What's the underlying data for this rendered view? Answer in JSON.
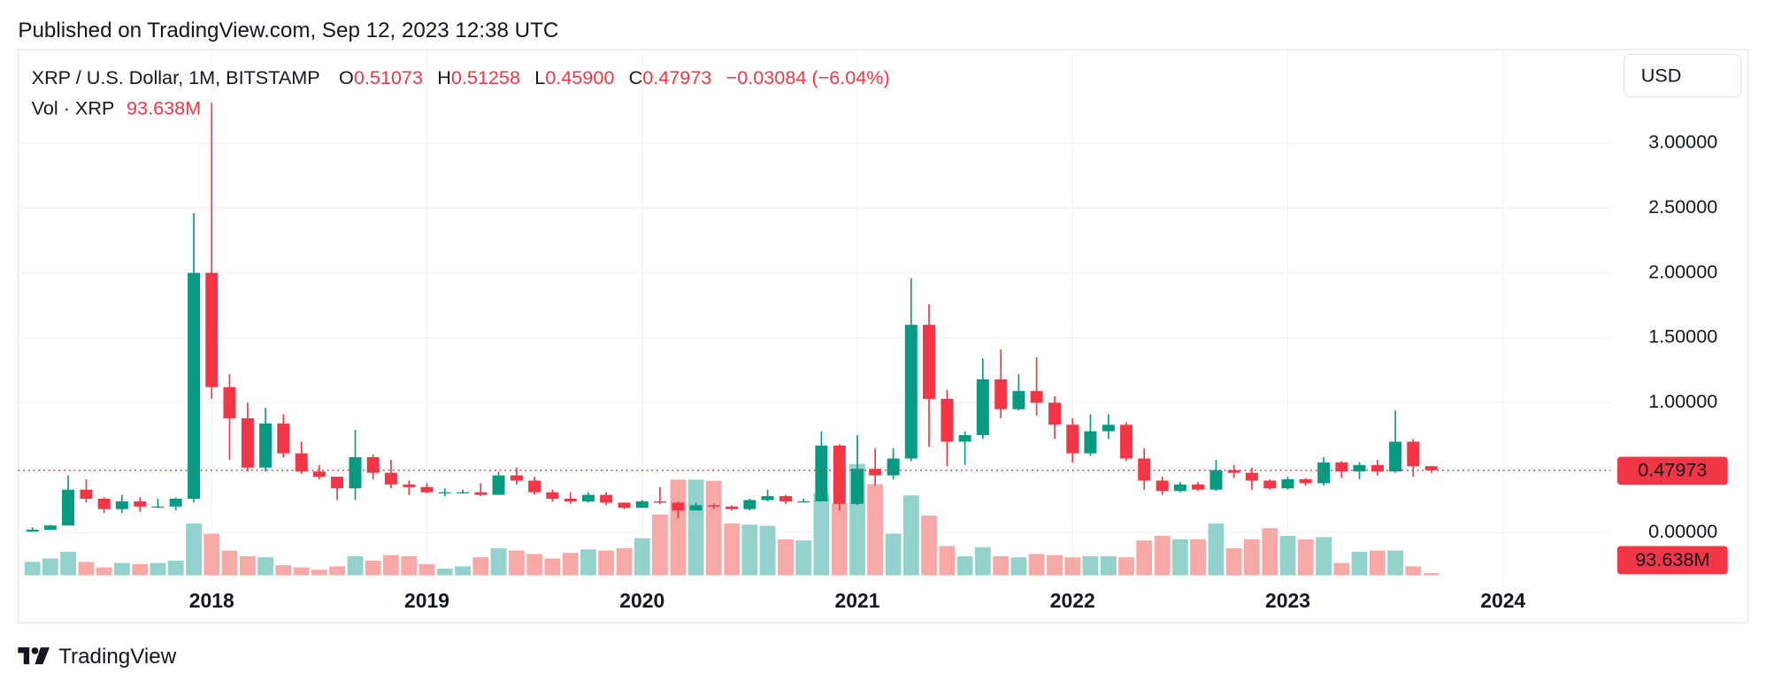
{
  "published": "Published on TradingView.com, Sep 12, 2023 12:38 UTC",
  "brand": "TradingView",
  "chart_data": {
    "type": "candlestick",
    "title": "XRP / U.S. Dollar, 1M, BITSTAMP",
    "legend": {
      "open_label": "O",
      "open": "0.51073",
      "high_label": "H",
      "high": "0.51258",
      "low_label": "L",
      "low": "0.45900",
      "close_label": "C",
      "close": "0.47973",
      "change": "−0.03084 (−6.04%)"
    },
    "currency": "USD",
    "up_color": "#089981",
    "down_color": "#f23645",
    "volume_up_color": "#93d2cc",
    "volume_down_color": "#f7a9a7",
    "grid": true,
    "xlim": [
      2017.1,
      2024.5
    ],
    "xticks": [
      2018,
      2019,
      2020,
      2021,
      2022,
      2023,
      2024
    ],
    "ylim": [
      -0.33,
      3.72
    ],
    "yticks": [
      {
        "value": 0,
        "label": "0.00000"
      },
      {
        "value": 0.5,
        "label": "0.50000"
      },
      {
        "value": 1,
        "label": "1.00000"
      },
      {
        "value": 1.5,
        "label": "1.50000"
      },
      {
        "value": 2,
        "label": "2.00000"
      },
      {
        "value": 2.5,
        "label": "2.50000"
      },
      {
        "value": 3,
        "label": "3.00000"
      }
    ],
    "y2lim": [
      0,
      21949000000
    ],
    "x": [
      2017.167,
      2017.25,
      2017.333,
      2017.417,
      2017.5,
      2017.583,
      2017.667,
      2017.75,
      2017.833,
      2017.917,
      2018,
      2018.083,
      2018.167,
      2018.25,
      2018.333,
      2018.417,
      2018.5,
      2018.583,
      2018.667,
      2018.75,
      2018.833,
      2018.917,
      2019,
      2019.083,
      2019.167,
      2019.25,
      2019.333,
      2019.417,
      2019.5,
      2019.583,
      2019.667,
      2019.75,
      2019.833,
      2019.917,
      2020,
      2020.083,
      2020.167,
      2020.25,
      2020.333,
      2020.417,
      2020.5,
      2020.583,
      2020.667,
      2020.75,
      2020.833,
      2020.917,
      2021,
      2021.083,
      2021.167,
      2021.25,
      2021.333,
      2021.417,
      2021.5,
      2021.583,
      2021.667,
      2021.75,
      2021.833,
      2021.917,
      2022,
      2022.083,
      2022.167,
      2022.25,
      2022.333,
      2022.417,
      2022.5,
      2022.583,
      2022.667,
      2022.75,
      2022.833,
      2022.917,
      2023,
      2023.083,
      2023.167,
      2023.25,
      2023.333,
      2023.417,
      2023.5,
      2023.583,
      2023.667
    ],
    "series": [
      {
        "name": "XRP / U.S. Dollar, 1M, BITSTAMP",
        "open": [
          0.0066,
          0.0213,
          0.054,
          0.33,
          0.26,
          0.18,
          0.24,
          0.2,
          0.2,
          0.26,
          2.0,
          1.12,
          0.88,
          0.5,
          0.84,
          0.61,
          0.47,
          0.43,
          0.34,
          0.58,
          0.46,
          0.37,
          0.35,
          0.31,
          0.31,
          0.31,
          0.29,
          0.44,
          0.4,
          0.31,
          0.26,
          0.24,
          0.29,
          0.23,
          0.19,
          0.24,
          0.23,
          0.17,
          0.21,
          0.2,
          0.18,
          0.25,
          0.28,
          0.24,
          0.24,
          0.67,
          0.22,
          0.49,
          0.44,
          0.57,
          1.6,
          1.03,
          0.7,
          0.75,
          1.18,
          0.95,
          1.09,
          1.0,
          0.83,
          0.61,
          0.78,
          0.83,
          0.57,
          0.4,
          0.32,
          0.37,
          0.33,
          0.48,
          0.46,
          0.4,
          0.34,
          0.41,
          0.38,
          0.54,
          0.47,
          0.52,
          0.47,
          0.7,
          0.51073
        ],
        "high": [
          0.0393,
          0.058,
          0.44,
          0.41,
          0.27,
          0.29,
          0.27,
          0.26,
          0.27,
          2.46,
          3.31,
          1.22,
          1.0,
          0.96,
          0.91,
          0.7,
          0.52,
          0.43,
          0.79,
          0.6,
          0.56,
          0.4,
          0.38,
          0.34,
          0.33,
          0.38,
          0.47,
          0.5,
          0.43,
          0.33,
          0.31,
          0.31,
          0.31,
          0.23,
          0.25,
          0.35,
          0.24,
          0.23,
          0.22,
          0.21,
          0.26,
          0.33,
          0.29,
          0.26,
          0.78,
          0.68,
          0.75,
          0.65,
          0.65,
          1.96,
          1.76,
          1.1,
          0.78,
          1.34,
          1.41,
          1.22,
          1.35,
          1.05,
          0.88,
          0.91,
          0.91,
          0.85,
          0.65,
          0.43,
          0.39,
          0.39,
          0.56,
          0.52,
          0.5,
          0.41,
          0.43,
          0.42,
          0.58,
          0.55,
          0.54,
          0.56,
          0.94,
          0.72,
          0.51258
        ],
        "low": [
          0.0063,
          0.02,
          0.054,
          0.23,
          0.15,
          0.15,
          0.16,
          0.19,
          0.17,
          0.23,
          1.03,
          0.56,
          0.47,
          0.47,
          0.58,
          0.45,
          0.41,
          0.25,
          0.25,
          0.41,
          0.34,
          0.29,
          0.3,
          0.28,
          0.3,
          0.28,
          0.29,
          0.37,
          0.29,
          0.24,
          0.22,
          0.23,
          0.21,
          0.18,
          0.19,
          0.22,
          0.11,
          0.17,
          0.18,
          0.17,
          0.17,
          0.24,
          0.22,
          0.23,
          0.24,
          0.17,
          0.21,
          0.36,
          0.41,
          0.55,
          0.66,
          0.51,
          0.52,
          0.72,
          0.88,
          0.94,
          0.9,
          0.72,
          0.54,
          0.59,
          0.72,
          0.55,
          0.33,
          0.29,
          0.31,
          0.32,
          0.32,
          0.42,
          0.33,
          0.33,
          0.33,
          0.36,
          0.36,
          0.42,
          0.41,
          0.44,
          0.46,
          0.43,
          0.459
        ],
        "close": [
          0.0213,
          0.054,
          0.33,
          0.26,
          0.18,
          0.24,
          0.2,
          0.2,
          0.26,
          2.0,
          1.12,
          0.88,
          0.5,
          0.84,
          0.61,
          0.47,
          0.43,
          0.34,
          0.58,
          0.46,
          0.37,
          0.35,
          0.31,
          0.31,
          0.31,
          0.29,
          0.44,
          0.4,
          0.31,
          0.26,
          0.24,
          0.29,
          0.23,
          0.19,
          0.24,
          0.23,
          0.17,
          0.21,
          0.2,
          0.18,
          0.25,
          0.28,
          0.24,
          0.24,
          0.67,
          0.22,
          0.49,
          0.44,
          0.57,
          1.6,
          1.03,
          0.7,
          0.75,
          1.18,
          0.95,
          1.09,
          1.0,
          0.83,
          0.61,
          0.78,
          0.83,
          0.57,
          0.4,
          0.32,
          0.37,
          0.33,
          0.48,
          0.46,
          0.4,
          0.34,
          0.41,
          0.38,
          0.54,
          0.47,
          0.52,
          0.47,
          0.7,
          0.5107,
          0.47973
        ]
      },
      {
        "name": "Vol · XRP",
        "axis": "y2",
        "values": [
          564000000,
          705000000,
          987000000,
          564000000,
          329000000,
          517000000,
          470000000,
          517000000,
          611000000,
          2162000000,
          1739000000,
          1034000000,
          799000000,
          752000000,
          423000000,
          329000000,
          235000000,
          376000000,
          799000000,
          611000000,
          846000000,
          799000000,
          470000000,
          282000000,
          376000000,
          752000000,
          1128000000,
          1034000000,
          893000000,
          705000000,
          940000000,
          1081000000,
          1034000000,
          1128000000,
          1551000000,
          2538000000,
          3995000000,
          3995000000,
          3948000000,
          2162000000,
          2115000000,
          2068000000,
          1504000000,
          1457000000,
          3431000000,
          3008000000,
          4653000000,
          3807000000,
          1739000000,
          3337000000,
          2491000000,
          1222000000,
          799000000,
          1175000000,
          799000000,
          752000000,
          893000000,
          846000000,
          752000000,
          799000000,
          799000000,
          752000000,
          1457000000,
          1645000000,
          1504000000,
          1504000000,
          2162000000,
          1128000000,
          1504000000,
          1974000000,
          1645000000,
          1504000000,
          1598000000,
          517000000,
          987000000,
          1034000000,
          1034000000,
          376000000,
          93638000
        ],
        "value_labels": [
          null,
          null,
          null,
          null,
          null,
          null,
          null,
          null,
          null,
          null,
          null,
          null,
          null,
          null,
          null,
          null,
          null,
          null,
          null,
          null,
          null,
          null,
          null,
          null,
          null,
          null,
          null,
          null,
          null,
          null,
          null,
          null,
          null,
          null,
          null,
          null,
          null,
          null,
          null,
          null,
          null,
          null,
          null,
          null,
          null,
          null,
          null,
          null,
          null,
          null,
          null,
          null,
          null,
          null,
          null,
          null,
          null,
          null,
          null,
          null,
          null,
          null,
          null,
          null,
          null,
          null,
          null,
          null,
          null,
          null,
          null,
          null,
          null,
          null,
          null,
          null,
          null,
          null,
          "93.638M"
        ]
      }
    ]
  }
}
